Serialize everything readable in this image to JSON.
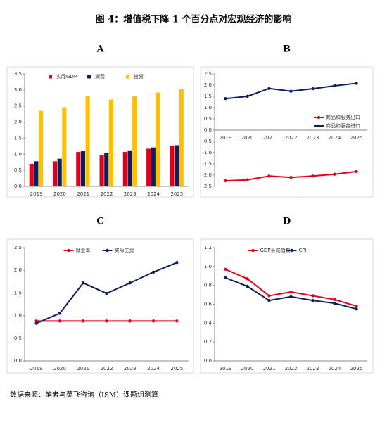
{
  "title": "图 4：增值税下降 1 个百分点对宏观经济的影响",
  "source": "数据来源：笔者与英飞咨询（ISM）课题组测算",
  "chart_data": [
    {
      "type": "bar",
      "title": "A",
      "categories": [
        "2019",
        "2020",
        "2021",
        "2022",
        "2023",
        "2024",
        "2025"
      ],
      "series": [
        {
          "name": "实际GDP",
          "color": "#e0001b",
          "values": [
            0.7,
            0.78,
            1.07,
            0.97,
            1.07,
            1.17,
            1.26
          ]
        },
        {
          "name": "消费",
          "color": "#0d1f5c",
          "values": [
            0.78,
            0.86,
            1.1,
            1.03,
            1.12,
            1.21,
            1.28
          ]
        },
        {
          "name": "投资",
          "color": "#ffc000",
          "values": [
            2.35,
            2.46,
            2.8,
            2.7,
            2.8,
            2.92,
            3.02
          ]
        }
      ],
      "ylim": [
        0,
        3.5
      ],
      "yticks": [
        {
          "value": 0,
          "label": "0.0"
        },
        0.5,
        {
          "value": 1,
          "label": "1.0"
        },
        1.5,
        {
          "value": 2,
          "label": "2.0"
        },
        2.5,
        {
          "value": 3,
          "label": "3.0"
        },
        3.5
      ],
      "legend": "top"
    },
    {
      "type": "line",
      "title": "B",
      "categories": [
        "2019",
        "2020",
        "2021",
        "2022",
        "2023",
        "2024",
        "2025"
      ],
      "series": [
        {
          "name": "商品和服务出口",
          "color": "#e0001b",
          "values": [
            -2.25,
            -2.21,
            -2.04,
            -2.1,
            -2.04,
            -1.96,
            -1.84
          ]
        },
        {
          "name": "商品和服务进口",
          "color": "#0d1f5c",
          "values": [
            1.4,
            1.5,
            1.85,
            1.73,
            1.84,
            1.97,
            2.08
          ]
        }
      ],
      "ylim": [
        -2.5,
        2.5
      ],
      "yticks": [
        -2.5,
        {
          "value": -2,
          "label": "-2.0"
        },
        -1.5,
        {
          "value": -1,
          "label": "-1.0"
        },
        -0.5,
        {
          "value": 0,
          "label": "0.0"
        },
        0.5,
        {
          "value": 1,
          "label": "1.0"
        },
        1.5,
        {
          "value": 2,
          "label": "2.0"
        },
        2.5
      ],
      "legend": "right"
    },
    {
      "type": "line",
      "title": "C",
      "categories": [
        "2019",
        "2020",
        "2021",
        "2022",
        "2023",
        "2024",
        "2025"
      ],
      "series": [
        {
          "name": "就业率",
          "color": "#e0001b",
          "values": [
            0.88,
            0.88,
            0.88,
            0.88,
            0.88,
            0.88,
            0.88
          ]
        },
        {
          "name": "实际工资",
          "color": "#0d1f5c",
          "values": [
            0.83,
            1.05,
            1.72,
            1.49,
            1.72,
            1.96,
            2.17
          ]
        }
      ],
      "ylim": [
        0,
        2.5
      ],
      "yticks": [
        {
          "value": 0,
          "label": "0.0"
        },
        0.5,
        {
          "value": 1,
          "label": "1.0"
        },
        1.5,
        {
          "value": 2,
          "label": "2.0"
        },
        2.5
      ],
      "legend": "top"
    },
    {
      "type": "line",
      "title": "D",
      "categories": [
        "2019",
        "2020",
        "2021",
        "2022",
        "2023",
        "2024",
        "2025"
      ],
      "series": [
        {
          "name": "GDP平减指数",
          "color": "#e0001b",
          "values": [
            0.97,
            0.87,
            0.69,
            0.73,
            0.69,
            0.65,
            0.58
          ]
        },
        {
          "name": "CPI",
          "color": "#0d1f5c",
          "values": [
            0.88,
            0.79,
            0.64,
            0.68,
            0.64,
            0.61,
            0.55
          ]
        }
      ],
      "ylim": [
        0,
        1.2
      ],
      "yticks": [
        {
          "value": 0,
          "label": "0.0"
        },
        0.2,
        0.4,
        0.6,
        0.8,
        {
          "value": 1,
          "label": "1.0"
        },
        1.2
      ],
      "legend": "top"
    }
  ]
}
